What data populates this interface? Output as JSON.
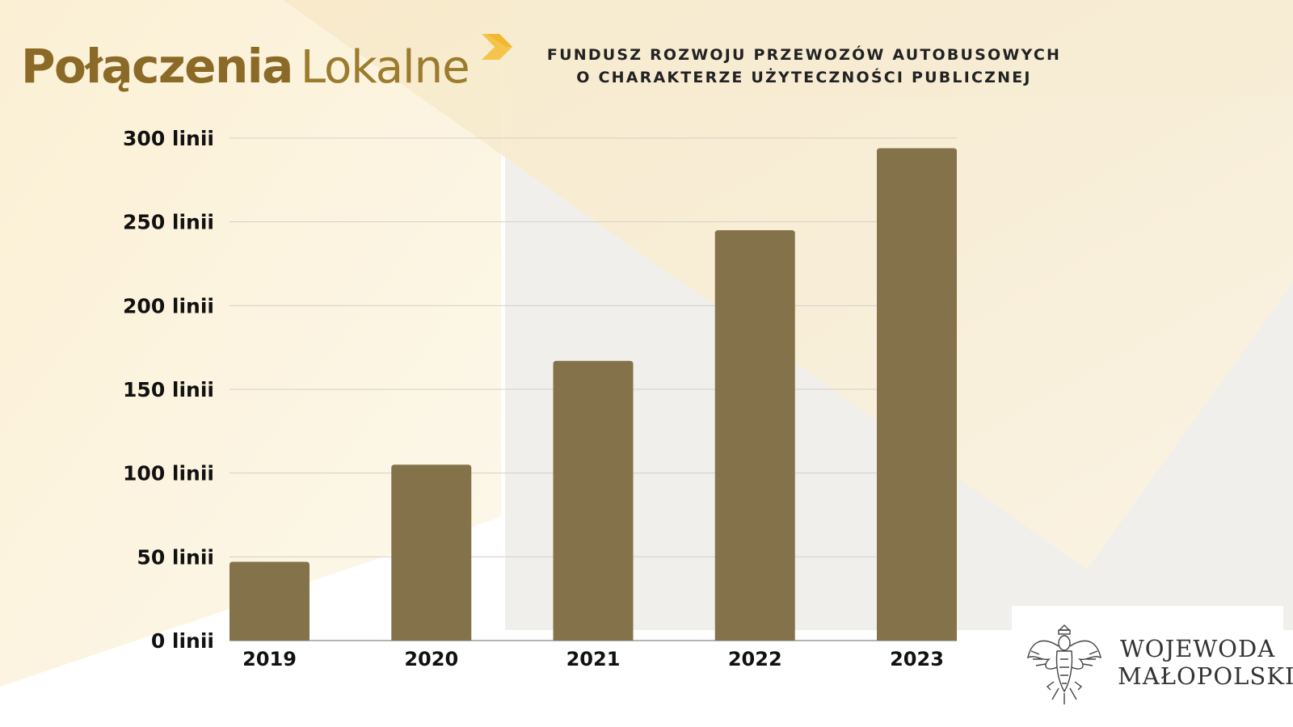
{
  "header": {
    "brand_bold": "Połączenia",
    "brand_light": "Lokalne",
    "subtitle_line1": "FUNDUSZ ROZWOJU PRZEWOZÓW AUTOBUSOWYCH",
    "subtitle_line2": "O CHARAKTERZE UŻYTECZNOŚCI PUBLICZNEJ"
  },
  "footer": {
    "emblem_line1": "WOJEWODA",
    "emblem_line2": "MAŁOPOLSKI"
  },
  "colors": {
    "bar": "#84734a",
    "brand": "#8a6a26",
    "accent": "#f4c54a",
    "grid": "#d3d0c8",
    "axis": "#888888"
  },
  "chart_data": {
    "type": "bar",
    "categories": [
      "2019",
      "2020",
      "2021",
      "2022",
      "2023"
    ],
    "values": [
      47,
      105,
      167,
      245,
      294
    ],
    "ylim": [
      0,
      300
    ],
    "yticks": [
      0,
      50,
      100,
      150,
      200,
      250,
      300
    ],
    "ytick_labels": [
      "0 linii",
      "50 linii",
      "100 linii",
      "150 linii",
      "200 linii",
      "250 linii",
      "300 linii"
    ],
    "grid": true,
    "title": "",
    "xlabel": "",
    "ylabel": ""
  }
}
